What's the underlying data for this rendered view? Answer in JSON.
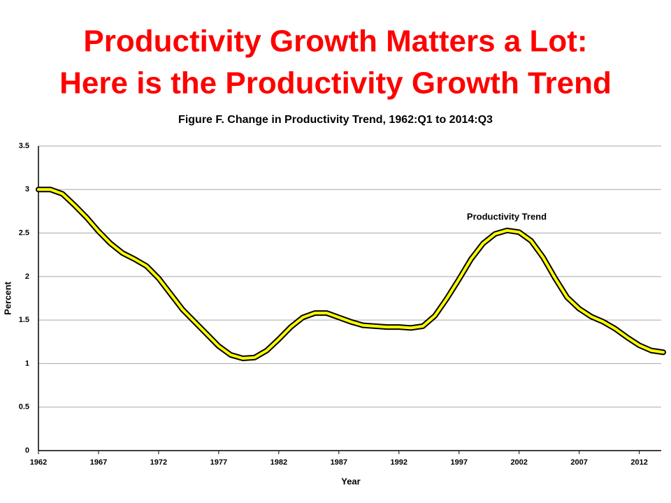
{
  "slide_title": [
    "Productivity Growth Matters a Lot:",
    "Here is the Productivity Growth Trend"
  ],
  "chart_data": {
    "type": "line",
    "title": "Figure F. Change in Productivity Trend, 1962:Q1 to 2014:Q3",
    "x_label": "Year",
    "y_label": "Percent",
    "x": [
      1962,
      1963,
      1964,
      1965,
      1966,
      1967,
      1968,
      1969,
      1970,
      1971,
      1972,
      1973,
      1974,
      1975,
      1976,
      1977,
      1978,
      1979,
      1980,
      1981,
      1982,
      1983,
      1984,
      1985,
      1986,
      1987,
      1988,
      1989,
      1990,
      1991,
      1992,
      1993,
      1994,
      1995,
      1996,
      1997,
      1998,
      1999,
      2000,
      2001,
      2002,
      2003,
      2004,
      2005,
      2006,
      2007,
      2008,
      2009,
      2010,
      2011,
      2012,
      2013,
      2014
    ],
    "series": [
      {
        "name": "Productivity Trend",
        "color": "#ffff00",
        "outline": "#000000",
        "values": [
          3.0,
          3.0,
          2.95,
          2.82,
          2.68,
          2.52,
          2.38,
          2.27,
          2.2,
          2.12,
          1.98,
          1.8,
          1.62,
          1.48,
          1.34,
          1.2,
          1.1,
          1.06,
          1.07,
          1.15,
          1.28,
          1.42,
          1.53,
          1.58,
          1.58,
          1.53,
          1.48,
          1.44,
          1.43,
          1.42,
          1.42,
          1.41,
          1.43,
          1.55,
          1.75,
          1.97,
          2.2,
          2.38,
          2.49,
          2.53,
          2.51,
          2.41,
          2.22,
          1.98,
          1.76,
          1.63,
          1.54,
          1.48,
          1.4,
          1.3,
          1.21,
          1.15,
          1.13
        ]
      }
    ],
    "xlim": [
      1962,
      2014
    ],
    "xticks": [
      1962,
      1967,
      1972,
      1977,
      1982,
      1987,
      1992,
      1997,
      2002,
      2007,
      2012
    ],
    "ylim": [
      0,
      3.5
    ],
    "yticks": [
      0,
      0.5,
      1,
      1.5,
      2,
      2.5,
      3,
      3.5
    ],
    "grid": true
  }
}
